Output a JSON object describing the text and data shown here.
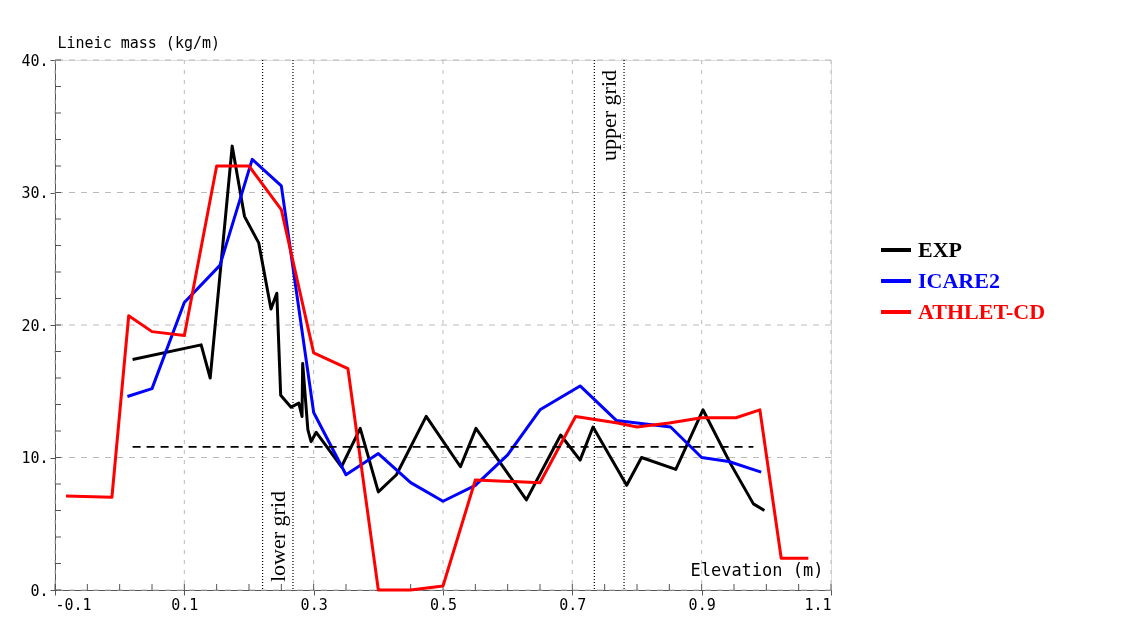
{
  "chart_data": {
    "type": "line",
    "xlabel": "Elevation (m)",
    "ylabel": "Lineic mass (kg/m)",
    "xlim": [
      -0.1,
      1.1
    ],
    "ylim": [
      0,
      40
    ],
    "xticks": [
      -0.1,
      {
        "value": -0.05,
        "label": null
      },
      {
        "value": 0.0,
        "label": null
      },
      {
        "value": 0.05,
        "label": null
      },
      0.1,
      {
        "value": 0.15,
        "label": null
      },
      {
        "value": 0.2,
        "label": null
      },
      {
        "value": 0.25,
        "label": null
      },
      0.3,
      {
        "value": 0.35,
        "label": null
      },
      {
        "value": 0.4,
        "label": null
      },
      {
        "value": 0.45,
        "label": null
      },
      0.5,
      {
        "value": 0.55,
        "label": null
      },
      {
        "value": 0.6,
        "label": null
      },
      {
        "value": 0.65,
        "label": null
      },
      0.7,
      {
        "value": 0.75,
        "label": null
      },
      {
        "value": 0.8,
        "label": null
      },
      {
        "value": 0.85,
        "label": null
      },
      0.9,
      {
        "value": 0.95,
        "label": null
      },
      {
        "value": 1.0,
        "label": null
      },
      {
        "value": 1.05,
        "label": null
      },
      1.1
    ],
    "yticks": [
      {
        "value": 0,
        "label": "0."
      },
      {
        "value": 2,
        "label": null
      },
      {
        "value": 4,
        "label": null
      },
      {
        "value": 6,
        "label": null
      },
      {
        "value": 8,
        "label": null
      },
      {
        "value": 10,
        "label": "10."
      },
      {
        "value": 12,
        "label": null
      },
      {
        "value": 14,
        "label": null
      },
      {
        "value": 16,
        "label": null
      },
      {
        "value": 18,
        "label": null
      },
      {
        "value": 20,
        "label": "20."
      },
      {
        "value": 22,
        "label": null
      },
      {
        "value": 24,
        "label": null
      },
      {
        "value": 26,
        "label": null
      },
      {
        "value": 28,
        "label": null
      },
      {
        "value": 30,
        "label": "30."
      },
      {
        "value": 32,
        "label": null
      },
      {
        "value": 34,
        "label": null
      },
      {
        "value": 36,
        "label": null
      },
      {
        "value": 38,
        "label": null
      },
      {
        "value": 40,
        "label": "40."
      }
    ],
    "grid": true,
    "legend": "right",
    "marker": "none",
    "line_style": "solid",
    "series": [
      {
        "name": "EXP",
        "color": "#000000",
        "x": [
          0.02,
          0.126,
          0.14,
          0.174,
          0.193,
          0.215,
          0.234,
          0.243,
          0.249,
          0.265,
          0.277,
          0.282,
          0.283,
          0.291,
          0.296,
          0.304,
          0.343,
          0.372,
          0.4,
          0.428,
          0.474,
          0.527,
          0.551,
          0.629,
          0.682,
          0.712,
          0.732,
          0.784,
          0.807,
          0.86,
          0.902,
          0.945,
          0.98,
          0.997
        ],
        "values": [
          17.4,
          18.5,
          16.0,
          33.5,
          28.2,
          26.2,
          21.2,
          22.4,
          14.7,
          13.8,
          14.1,
          13.1,
          17.1,
          12.1,
          11.2,
          11.9,
          9.3,
          12.2,
          7.4,
          8.7,
          13.1,
          9.3,
          12.2,
          6.8,
          11.7,
          9.8,
          12.3,
          7.9,
          10.0,
          9.1,
          13.6,
          9.5,
          6.5,
          6.0
        ]
      },
      {
        "name": "ICARE2",
        "color": "#0000ff",
        "x": [
          0.012,
          0.05,
          0.1,
          0.155,
          0.205,
          0.25,
          0.3,
          0.35,
          0.4,
          0.45,
          0.5,
          0.55,
          0.6,
          0.65,
          0.712,
          0.768,
          0.852,
          0.9,
          0.942,
          0.992
        ],
        "values": [
          14.6,
          15.2,
          21.7,
          24.5,
          32.5,
          30.5,
          13.4,
          8.7,
          10.3,
          8.1,
          6.7,
          7.9,
          10.2,
          13.6,
          15.4,
          12.8,
          12.3,
          10.0,
          9.7,
          8.9
        ]
      },
      {
        "name": "ATHLET-CD",
        "color": "#ff0000",
        "x": [
          -0.083,
          -0.012,
          0.014,
          0.05,
          0.1,
          0.15,
          0.2,
          0.25,
          0.3,
          0.353,
          0.4,
          0.45,
          0.5,
          0.55,
          0.65,
          0.705,
          0.77,
          0.8,
          0.85,
          0.9,
          0.953,
          0.99,
          1.023,
          1.065
        ],
        "values": [
          7.1,
          7.0,
          20.7,
          19.5,
          19.2,
          32.0,
          32.0,
          28.7,
          17.9,
          16.7,
          0,
          0,
          0.3,
          8.3,
          8.1,
          13.1,
          12.6,
          12.3,
          12.6,
          13.0,
          13.0,
          13.6,
          2.4,
          2.4
        ]
      },
      {
        "color": "#000000",
        "line_style": "dashed",
        "x": [
          0.02,
          0.98
        ],
        "values": [
          10.8,
          10.8
        ]
      }
    ],
    "ref_lines": [
      {
        "axis": "x",
        "value": 0.221,
        "label": "lower grid",
        "line_style": "dotted",
        "color": "#000000"
      },
      {
        "axis": "x",
        "value": 0.268,
        "line_style": "dotted",
        "color": "#000000"
      },
      {
        "axis": "x",
        "value": 0.734,
        "label": "upper grid",
        "line_style": "dotted",
        "color": "#000000"
      },
      {
        "axis": "x",
        "value": 0.78,
        "line_style": "dotted",
        "color": "#000000"
      }
    ]
  }
}
